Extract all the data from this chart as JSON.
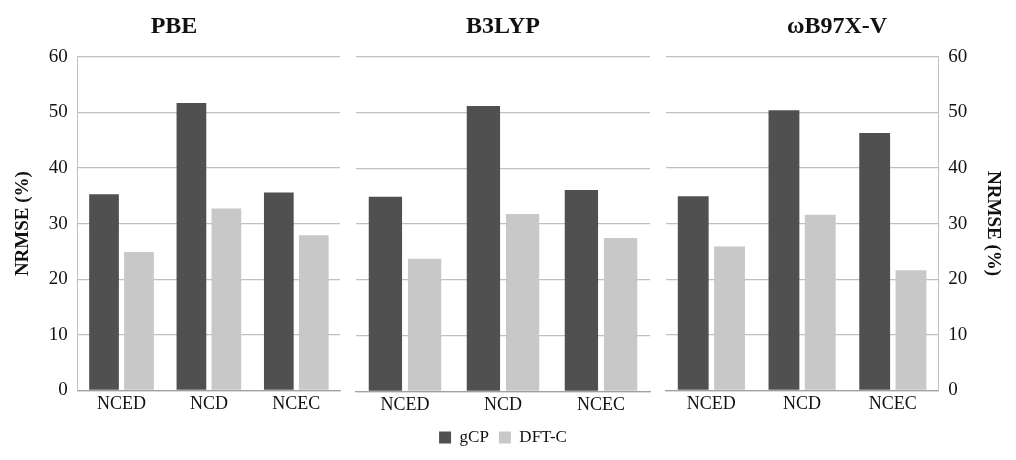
{
  "chart_data": [
    {
      "type": "bar",
      "title": "PBE",
      "ylabel": "NRMSE (%)",
      "categories": [
        "NCED",
        "NCD",
        "NCEC"
      ],
      "series": [
        {
          "color": "#505050",
          "values": [
            35.3,
            51.7,
            35.6
          ]
        },
        {
          "color": "#c8c8c8",
          "values": [
            24.9,
            32.7,
            27.9
          ]
        }
      ],
      "ylim": [
        0,
        60
      ],
      "yticks": [
        0,
        10,
        20,
        30,
        40,
        50,
        60
      ],
      "grid": "y",
      "legend": false
    },
    {
      "type": "bar",
      "title": "B3LYP",
      "categories": [
        "NCED",
        "NCD",
        "NCEC"
      ],
      "series": [
        {
          "name": "gCP",
          "color": "#505050",
          "values": [
            34.9,
            51.2,
            36.1
          ]
        },
        {
          "name": "DFT-C",
          "color": "#c8c8c8",
          "values": [
            23.8,
            31.8,
            27.5
          ]
        }
      ],
      "ylim": [
        0,
        60
      ],
      "yticks": [
        0,
        10,
        20,
        30,
        40,
        50,
        60
      ],
      "grid": "y",
      "legend": "bottom",
      "tick_labels": "x"
    },
    {
      "type": "bar",
      "title": "ωB97X-V",
      "y2label": "NRMSE (%)",
      "categories": [
        "NCED",
        "NCD",
        "NCEC"
      ],
      "series": [
        {
          "color": "#505050",
          "values": [
            34.9,
            50.4,
            46.3
          ],
          "axis": "y2"
        },
        {
          "color": "#c8c8c8",
          "values": [
            25.9,
            31.6,
            21.6
          ],
          "axis": "y2"
        }
      ],
      "y2lim": [
        0,
        60
      ],
      "y2ticks": [
        0,
        10,
        20,
        30,
        40,
        50,
        60
      ],
      "grid": "y",
      "legend": false
    }
  ]
}
